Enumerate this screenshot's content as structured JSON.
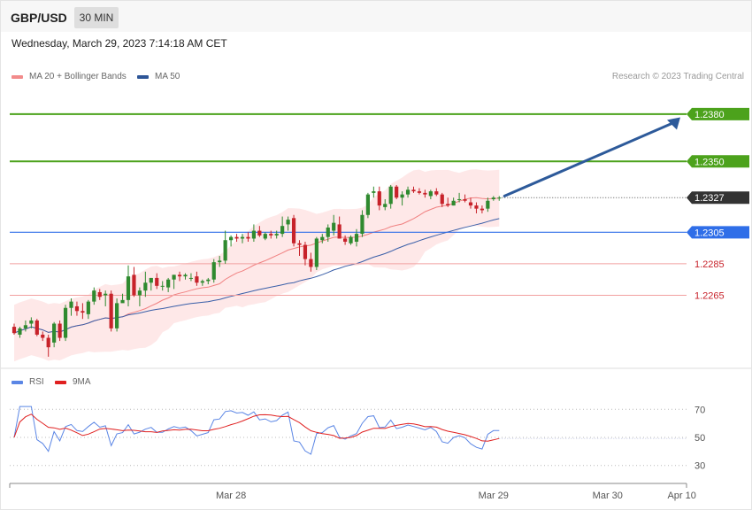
{
  "header": {
    "symbol": "GBP/USD",
    "timeframe": "30 MIN"
  },
  "datetime": "Wednesday, March 29, 2023 7:14:18 AM CET",
  "legend_main": [
    {
      "label": "MA 20 + Bollinger Bands",
      "color": "#f28b8b"
    },
    {
      "label": "MA 50",
      "color": "#2d5597"
    }
  ],
  "credit": "Research © 2023 Trading Central",
  "legend_rsi": [
    {
      "label": "RSI",
      "color": "#5b86e5"
    },
    {
      "label": "9MA",
      "color": "#e02020"
    }
  ],
  "colors": {
    "up": "#2f8a2f",
    "down": "#c7222a",
    "resistance": "#4ca21c",
    "support": "#2f6ee8",
    "minor_support": "#f2a0a0",
    "arrow": "#2d5a9a",
    "rsi": "#5b86e5",
    "rsi_ma": "#e02020"
  },
  "chart_data": {
    "type": "candlestick",
    "price_ylim": [
      1.2222,
      1.2394
    ],
    "levels": [
      {
        "label": "1.2380",
        "value": 1.238,
        "kind": "resistance"
      },
      {
        "label": "1.2350",
        "value": 1.235,
        "kind": "resistance"
      },
      {
        "label": "1.2327",
        "value": 1.2327,
        "kind": "last"
      },
      {
        "label": "1.2305",
        "value": 1.2305,
        "kind": "support"
      },
      {
        "label": "1.2285",
        "value": 1.2285,
        "kind": "minor_support"
      },
      {
        "label": "1.2265",
        "value": 1.2265,
        "kind": "minor_support"
      }
    ],
    "candles_ohlc": [
      [
        1.2245,
        1.2247,
        1.224,
        1.2241
      ],
      [
        1.224,
        1.2245,
        1.2238,
        1.2244
      ],
      [
        1.2244,
        1.2249,
        1.2242,
        1.2246
      ],
      [
        1.2247,
        1.2251,
        1.2244,
        1.2249
      ],
      [
        1.2249,
        1.225,
        1.2239,
        1.224
      ],
      [
        1.224,
        1.2242,
        1.2236,
        1.2238
      ],
      [
        1.2238,
        1.224,
        1.2226,
        1.2232
      ],
      [
        1.2235,
        1.2248,
        1.2232,
        1.2247
      ],
      [
        1.2247,
        1.2249,
        1.2236,
        1.2238
      ],
      [
        1.2238,
        1.2259,
        1.2236,
        1.2257
      ],
      [
        1.2257,
        1.2263,
        1.2252,
        1.2261
      ],
      [
        1.2258,
        1.2261,
        1.2252,
        1.2255
      ],
      [
        1.2255,
        1.226,
        1.225,
        1.2254
      ],
      [
        1.2253,
        1.2262,
        1.225,
        1.2261
      ],
      [
        1.2261,
        1.227,
        1.2259,
        1.2268
      ],
      [
        1.2267,
        1.2269,
        1.2262,
        1.2264
      ],
      [
        1.2265,
        1.2268,
        1.2258,
        1.2266
      ],
      [
        1.2266,
        1.2268,
        1.2242,
        1.2244
      ],
      [
        1.2244,
        1.2263,
        1.2242,
        1.226
      ],
      [
        1.226,
        1.2262,
        1.2266,
        1.2262
      ],
      [
        1.2262,
        1.2284,
        1.2258,
        1.2277
      ],
      [
        1.2278,
        1.2283,
        1.2264,
        1.2265
      ],
      [
        1.2265,
        1.227,
        1.2258,
        1.2268
      ],
      [
        1.2268,
        1.228,
        1.2264,
        1.2273
      ],
      [
        1.2273,
        1.2276,
        1.2268,
        1.2276
      ],
      [
        1.2276,
        1.2279,
        1.2269,
        1.2271
      ],
      [
        1.2271,
        1.2274,
        1.2268,
        1.2271
      ],
      [
        1.227,
        1.2276,
        1.2267,
        1.2275
      ],
      [
        1.2275,
        1.2278,
        1.2269,
        1.2278
      ],
      [
        1.2278,
        1.228,
        1.2274,
        1.2277
      ],
      [
        1.2277,
        1.2279,
        1.2275,
        1.2278
      ],
      [
        1.2276,
        1.2279,
        1.2274,
        1.2276
      ],
      [
        1.2277,
        1.228,
        1.2271,
        1.2273
      ],
      [
        1.2273,
        1.2275,
        1.2271,
        1.2274
      ],
      [
        1.2274,
        1.2276,
        1.2272,
        1.2275
      ],
      [
        1.2275,
        1.2288,
        1.2273,
        1.2286
      ],
      [
        1.2286,
        1.229,
        1.2283,
        1.2287
      ],
      [
        1.2287,
        1.2306,
        1.2285,
        1.23
      ],
      [
        1.23,
        1.2303,
        1.2296,
        1.2302
      ],
      [
        1.2302,
        1.2304,
        1.2299,
        1.2301
      ],
      [
        1.2301,
        1.2304,
        1.2298,
        1.2302
      ],
      [
        1.2302,
        1.2305,
        1.2299,
        1.2301
      ],
      [
        1.2301,
        1.231,
        1.2299,
        1.2306
      ],
      [
        1.2306,
        1.2309,
        1.2302,
        1.2303
      ],
      [
        1.2301,
        1.2305,
        1.23,
        1.2304
      ],
      [
        1.2304,
        1.2306,
        1.2301,
        1.2303
      ],
      [
        1.2303,
        1.2306,
        1.2301,
        1.2304
      ],
      [
        1.2304,
        1.2315,
        1.2302,
        1.2309
      ],
      [
        1.231,
        1.2315,
        1.2306,
        1.2313
      ],
      [
        1.2314,
        1.2316,
        1.2296,
        1.2298
      ],
      [
        1.2298,
        1.23,
        1.229,
        1.2297
      ],
      [
        1.2297,
        1.2299,
        1.2284,
        1.2288
      ],
      [
        1.2288,
        1.2292,
        1.228,
        1.2283
      ],
      [
        1.2283,
        1.2302,
        1.2281,
        1.2301
      ],
      [
        1.23,
        1.2304,
        1.2298,
        1.2302
      ],
      [
        1.2302,
        1.231,
        1.2299,
        1.2308
      ],
      [
        1.2306,
        1.2316,
        1.2303,
        1.2311
      ],
      [
        1.231,
        1.2315,
        1.2301,
        1.2301
      ],
      [
        1.2301,
        1.2303,
        1.2297,
        1.2299
      ],
      [
        1.2298,
        1.2303,
        1.2297,
        1.2302
      ],
      [
        1.2299,
        1.2307,
        1.2296,
        1.2304
      ],
      [
        1.2304,
        1.2319,
        1.2302,
        1.2316
      ],
      [
        1.2316,
        1.233,
        1.2314,
        1.2329
      ],
      [
        1.233,
        1.2334,
        1.2327,
        1.2331
      ],
      [
        1.2331,
        1.2334,
        1.2319,
        1.2322
      ],
      [
        1.2321,
        1.2326,
        1.2319,
        1.2323
      ],
      [
        1.2323,
        1.2335,
        1.232,
        1.2334
      ],
      [
        1.2334,
        1.2335,
        1.2326,
        1.2327
      ],
      [
        1.2327,
        1.2331,
        1.2322,
        1.2329
      ],
      [
        1.2329,
        1.2334,
        1.2327,
        1.2332
      ],
      [
        1.2332,
        1.2334,
        1.233,
        1.2331
      ],
      [
        1.2331,
        1.2333,
        1.2329,
        1.233
      ],
      [
        1.233,
        1.2332,
        1.2327,
        1.2329
      ],
      [
        1.2328,
        1.2332,
        1.2326,
        1.2331
      ],
      [
        1.2331,
        1.2333,
        1.2328,
        1.2329
      ],
      [
        1.2329,
        1.233,
        1.2321,
        1.2323
      ],
      [
        1.2323,
        1.2327,
        1.2321,
        1.2322
      ],
      [
        1.2322,
        1.2327,
        1.2322,
        1.2325
      ],
      [
        1.2326,
        1.233,
        1.2324,
        1.2326
      ],
      [
        1.2326,
        1.2329,
        1.2324,
        1.2325
      ],
      [
        1.2324,
        1.2327,
        1.232,
        1.2322
      ],
      [
        1.2322,
        1.2324,
        1.2317,
        1.232
      ],
      [
        1.232,
        1.2322,
        1.2317,
        1.2319
      ],
      [
        1.232,
        1.2327,
        1.2318,
        1.2325
      ],
      [
        1.2326,
        1.2328,
        1.2325,
        1.2327
      ],
      [
        1.2327,
        1.2328,
        1.2325,
        1.2327
      ]
    ],
    "rsi_ylim": [
      21,
      79
    ],
    "rsi_levels": [
      70,
      50,
      30
    ],
    "x_tick_labels": [
      "Mar 28",
      "Mar 29",
      "Mar 30",
      "Apr 10"
    ],
    "x_tick_candle_index": [
      38,
      84,
      104,
      117
    ],
    "target_arrow": {
      "from_price": 1.2328,
      "to_price": 1.2378
    }
  }
}
